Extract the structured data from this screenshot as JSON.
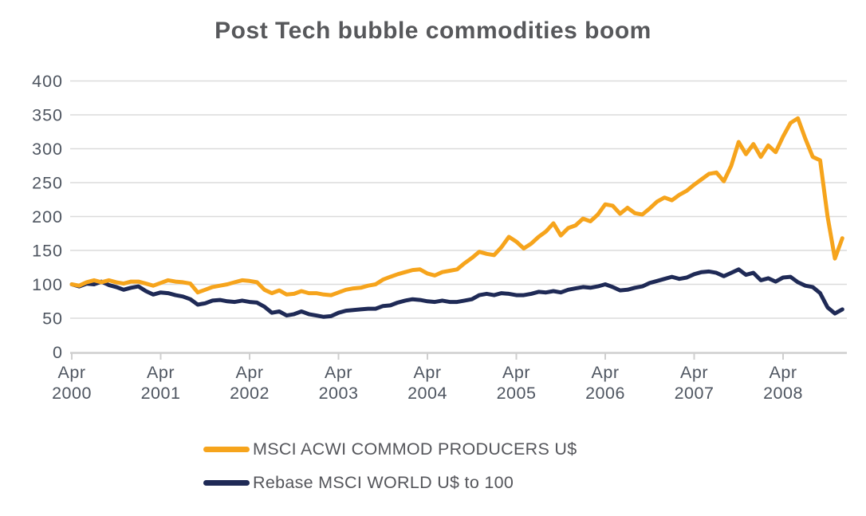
{
  "chart_data": {
    "type": "line",
    "title": "Post Tech bubble commodities boom",
    "xlabel": "",
    "ylabel": "",
    "ylim": [
      0,
      400
    ],
    "y_ticks": [
      0,
      50,
      100,
      150,
      200,
      250,
      300,
      350,
      400
    ],
    "grid": "horizontal",
    "legend_position": "bottom",
    "x_unit": "monthly points from Apr 2000 to Dec 2008",
    "x_ticks": [
      {
        "line1": "Apr",
        "line2": "2000"
      },
      {
        "line1": "Apr",
        "line2": "2001"
      },
      {
        "line1": "Apr",
        "line2": "2002"
      },
      {
        "line1": "Apr",
        "line2": "2003"
      },
      {
        "line1": "Apr",
        "line2": "2004"
      },
      {
        "line1": "Apr",
        "line2": "2005"
      },
      {
        "line1": "Apr",
        "line2": "2006"
      },
      {
        "line1": "Apr",
        "line2": "2007"
      },
      {
        "line1": "Apr",
        "line2": "2008"
      }
    ],
    "series": [
      {
        "name": "Rebase MSCI WORLD U$ to 100",
        "color": "#1f2a56",
        "values": [
          100,
          97,
          101,
          100,
          104,
          99,
          96,
          92,
          95,
          97,
          90,
          85,
          88,
          87,
          84,
          82,
          78,
          70,
          72,
          76,
          77,
          75,
          74,
          76,
          74,
          73,
          67,
          58,
          60,
          54,
          56,
          60,
          56,
          54,
          52,
          53,
          58,
          61,
          62,
          63,
          64,
          64,
          68,
          69,
          73,
          76,
          78,
          77,
          75,
          74,
          76,
          74,
          74,
          76,
          78,
          84,
          86,
          84,
          87,
          86,
          84,
          84,
          86,
          89,
          88,
          90,
          88,
          92,
          94,
          96,
          95,
          97,
          100,
          96,
          91,
          92,
          95,
          97,
          102,
          105,
          108,
          111,
          108,
          110,
          115,
          118,
          119,
          117,
          112,
          117,
          122,
          114,
          117,
          106,
          109,
          104,
          110,
          111,
          103,
          98,
          96,
          87,
          66,
          57,
          63
        ]
      },
      {
        "name": "MSCI ACWI COMMOD PRODUCERS U$",
        "color": "#f6a41c",
        "values": [
          100,
          98,
          103,
          106,
          103,
          106,
          103,
          101,
          104,
          104,
          101,
          98,
          102,
          106,
          104,
          103,
          101,
          88,
          92,
          96,
          98,
          100,
          103,
          106,
          105,
          103,
          92,
          87,
          91,
          85,
          86,
          90,
          87,
          87,
          85,
          84,
          88,
          92,
          94,
          95,
          98,
          100,
          107,
          111,
          115,
          118,
          121,
          122,
          116,
          113,
          118,
          120,
          122,
          131,
          139,
          148,
          145,
          143,
          155,
          170,
          163,
          153,
          160,
          170,
          178,
          190,
          172,
          183,
          187,
          197,
          193,
          203,
          218,
          216,
          204,
          213,
          205,
          203,
          212,
          222,
          228,
          224,
          232,
          238,
          247,
          255,
          263,
          265,
          252,
          275,
          310,
          292,
          307,
          288,
          305,
          295,
          318,
          338,
          345,
          315,
          288,
          283,
          200,
          138,
          168
        ]
      }
    ],
    "colors": {
      "title": "#57585b",
      "tick_label": "#4e5560",
      "grid": "#dbdbdb",
      "axis": "#cfcfcf",
      "legend_text": "#55565b"
    }
  },
  "legend": {
    "items": [
      {
        "label": "MSCI ACWI COMMOD PRODUCERS U$",
        "color": "#f6a41c"
      },
      {
        "label": "Rebase MSCI WORLD U$ to 100",
        "color": "#1f2a56"
      }
    ]
  }
}
